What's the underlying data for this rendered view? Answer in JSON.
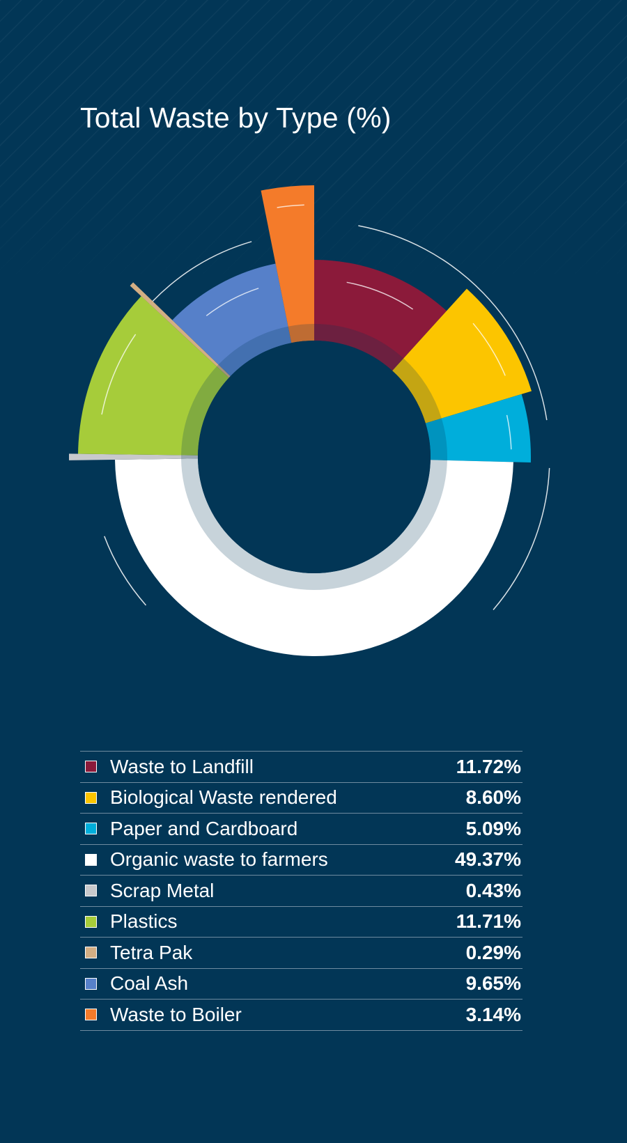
{
  "chart_data": {
    "type": "pie",
    "title": "Total Waste by Type (%)",
    "categories": [
      "Waste to Landfill",
      "Biological Waste rendered",
      "Paper and Cardboard",
      "Organic waste to farmers",
      "Scrap Metal",
      "Plastics",
      "Tetra Pak",
      "Coal Ash",
      "Waste to Boiler"
    ],
    "values": [
      11.72,
      8.6,
      5.09,
      49.37,
      0.43,
      11.71,
      0.29,
      9.65,
      3.14
    ],
    "value_labels": [
      "11.72%",
      "8.60%",
      "5.09%",
      "49.37%",
      "0.43%",
      "11.71%",
      "0.29%",
      "9.65%",
      "3.14%"
    ],
    "colors": [
      "#8b1a3a",
      "#fcc500",
      "#00aedb",
      "#ffffff",
      "#c8c9cc",
      "#a6cc3a",
      "#d3ae84",
      "#5680c9",
      "#f47b2a"
    ],
    "legend_position": "bottom",
    "grid": false
  }
}
